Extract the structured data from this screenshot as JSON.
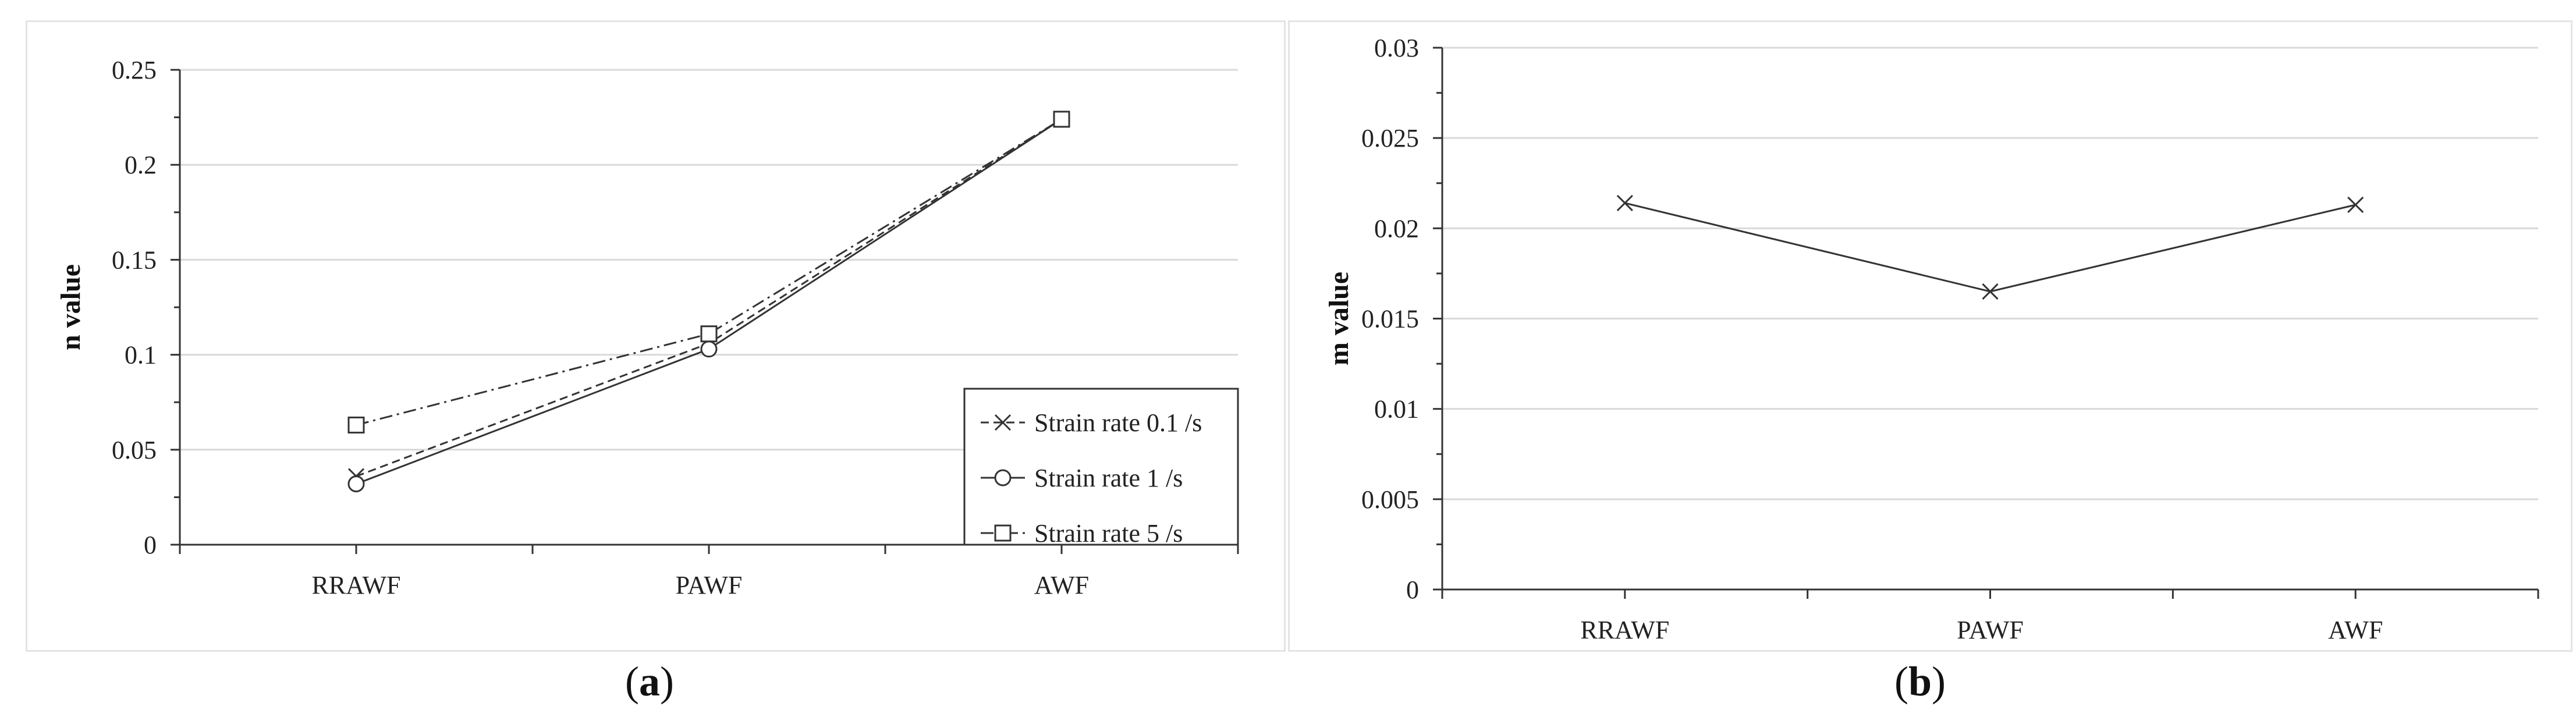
{
  "panels": [
    {
      "caption_letter": "a",
      "chart_data": {
        "type": "line",
        "ylabel": "n value",
        "xlabel": "",
        "categories": [
          "RRAWF",
          "PAWF",
          "AWF"
        ],
        "ylim": [
          0,
          0.25
        ],
        "yticks": [
          "0",
          "0.05",
          "0.1",
          "0.15",
          "0.2",
          "0.25"
        ],
        "grid": true,
        "legend": "bottom-right",
        "series": [
          {
            "name": "Strain rate 0.1 /s",
            "marker": "x",
            "dash": "dash",
            "values": [
              0.036,
              0.106,
              0.224
            ]
          },
          {
            "name": "Strain rate 1 /s",
            "marker": "circle",
            "dash": "solid",
            "values": [
              0.032,
              0.103,
              0.224
            ]
          },
          {
            "name": "Strain rate 5 /s",
            "marker": "square",
            "dash": "dashdot",
            "values": [
              0.063,
              0.111,
              0.224
            ]
          }
        ]
      }
    },
    {
      "caption_letter": "b",
      "chart_data": {
        "type": "line",
        "ylabel": "m value",
        "xlabel": "",
        "categories": [
          "RRAWF",
          "PAWF",
          "AWF"
        ],
        "ylim": [
          0,
          0.03
        ],
        "yticks": [
          "0",
          "0.005",
          "0.01",
          "0.015",
          "0.02",
          "0.025",
          "0.03"
        ],
        "grid": true,
        "series": [
          {
            "marker": "x",
            "dash": "solid",
            "values": [
              0.0214,
              0.0165,
              0.0213
            ]
          }
        ]
      }
    }
  ]
}
